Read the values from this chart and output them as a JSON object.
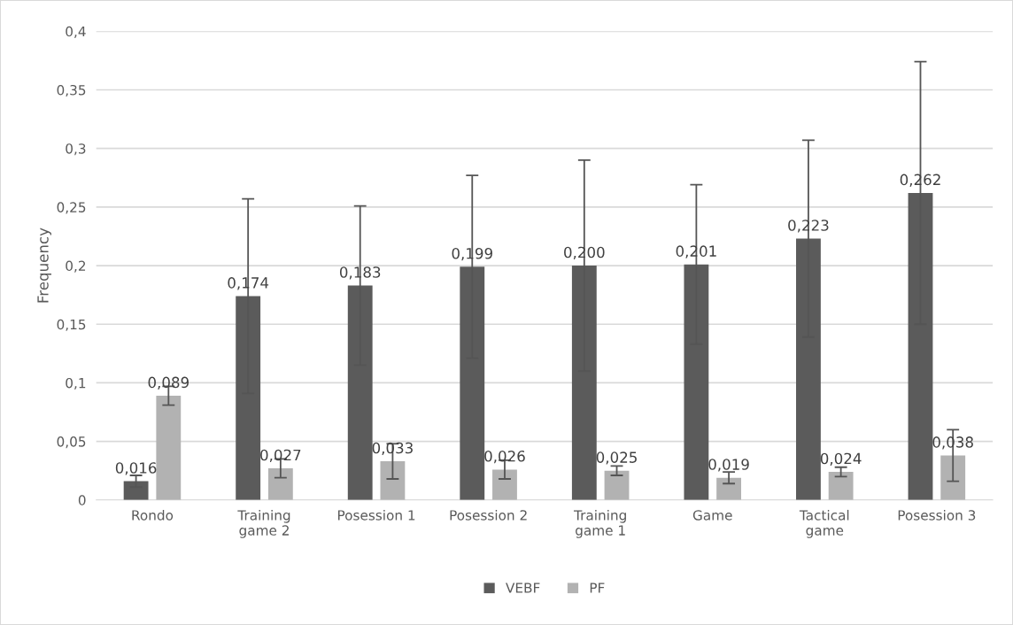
{
  "chart_data": {
    "type": "bar",
    "ylabel": "Frequency",
    "categories": [
      "Rondo",
      "Training\ngame 2",
      "Posession 1",
      "Posession 2",
      "Training\ngame 1",
      "Game",
      "Tactical\ngame",
      "Posession 3"
    ],
    "series": [
      {
        "name": "VEBF",
        "color": "#5b5b5b",
        "values": [
          0.016,
          0.174,
          0.183,
          0.199,
          0.2,
          0.201,
          0.223,
          0.262
        ],
        "errors": [
          0.005,
          0.083,
          0.068,
          0.078,
          0.09,
          0.068,
          0.084,
          0.112
        ],
        "value_labels": [
          "0,016",
          "0,174",
          "0,183",
          "0,199",
          "0,200",
          "0,201",
          "0,223",
          "0,262"
        ]
      },
      {
        "name": "PF",
        "color": "#b2b2b2",
        "values": [
          0.089,
          0.027,
          0.033,
          0.026,
          0.025,
          0.019,
          0.024,
          0.038
        ],
        "errors": [
          0.008,
          0.008,
          0.015,
          0.008,
          0.004,
          0.005,
          0.004,
          0.022
        ],
        "value_labels": [
          "0,089",
          "0,027",
          "0,033",
          "0,026",
          "0,025",
          "0,019",
          "0,024",
          "0,038"
        ]
      }
    ],
    "ylim": [
      0,
      0.4
    ],
    "yticks": [
      0,
      {
        "value": 0.05,
        "label": "0,05"
      },
      {
        "value": 0.1,
        "label": "0,1"
      },
      {
        "value": 0.15,
        "label": "0,15"
      },
      {
        "value": 0.2,
        "label": "0,2"
      },
      {
        "value": 0.25,
        "label": "0,25"
      },
      {
        "value": 0.3,
        "label": "0,3"
      },
      {
        "value": 0.35,
        "label": "0,35"
      },
      {
        "value": 0.4,
        "label": "0,4"
      }
    ],
    "grid": "y",
    "legend": "bottom"
  }
}
